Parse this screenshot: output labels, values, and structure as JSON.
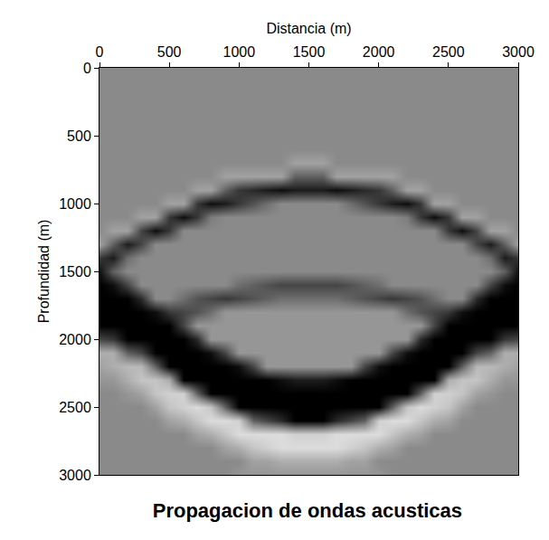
{
  "chart_data": {
    "type": "heatmap",
    "title": "Propagacion de ondas acusticas",
    "x_label": "Distancia (m)",
    "y_label": "Profundidad (m)",
    "x": [
      0,
      100,
      200,
      300,
      400,
      500,
      600,
      700,
      800,
      900,
      1000,
      1100,
      1200,
      1300,
      1400,
      1500,
      1600,
      1700,
      1800,
      1900,
      2000,
      2100,
      2200,
      2300,
      2400,
      2500,
      2600,
      2700,
      2800,
      2900,
      3000
    ],
    "y": [
      0,
      100,
      200,
      300,
      400,
      500,
      600,
      700,
      800,
      900,
      1000,
      1100,
      1200,
      1300,
      1400,
      1500,
      1600,
      1700,
      1800,
      1900,
      2000,
      2100,
      2200,
      2300,
      2400,
      2500,
      2600,
      2700,
      2800,
      2900,
      3000
    ],
    "xlim": [
      0,
      3000
    ],
    "ylim": [
      3000,
      0
    ],
    "xticks": [
      0,
      500,
      1000,
      1500,
      2000,
      2500,
      3000
    ],
    "yticks": [
      0,
      500,
      1000,
      1500,
      2000,
      2500,
      3000
    ],
    "zlim": [
      -10,
      10
    ],
    "grid": false,
    "z": [
      [
        0,
        0,
        0,
        0,
        0,
        0,
        0,
        0,
        0,
        0,
        0,
        0,
        0,
        0,
        0,
        0,
        0,
        0,
        0,
        0,
        0,
        0,
        0,
        0,
        0,
        0,
        0,
        0,
        0,
        0,
        0
      ],
      [
        0,
        0,
        0,
        0,
        0,
        0,
        0,
        0,
        0,
        0,
        0,
        0,
        0,
        0,
        0,
        0,
        0,
        0,
        0,
        0,
        0,
        0,
        0,
        0,
        0,
        0,
        0,
        0,
        0,
        0,
        0
      ],
      [
        0,
        0,
        0,
        0,
        0,
        0,
        0,
        0,
        0,
        0,
        0,
        0,
        0,
        0,
        0,
        0,
        0,
        0,
        0,
        0,
        0,
        0,
        0,
        0,
        0,
        0,
        0,
        0,
        0,
        0,
        0
      ],
      [
        0,
        0,
        0,
        0,
        0,
        0,
        0,
        0,
        0,
        0,
        0,
        0,
        0,
        0,
        0,
        0,
        0,
        0,
        0,
        0,
        0,
        0,
        0,
        0,
        0,
        0,
        0,
        0,
        0,
        0,
        0
      ],
      [
        0,
        0,
        0,
        0,
        0,
        0,
        0,
        0,
        0,
        0,
        0,
        0,
        0,
        0,
        0,
        0,
        0,
        0,
        0,
        0,
        0,
        0,
        0,
        0,
        0,
        0,
        0,
        0,
        0,
        0,
        0
      ],
      [
        0,
        0,
        0,
        0,
        0,
        0,
        0,
        0,
        0,
        0,
        0,
        0,
        0,
        0,
        0,
        0,
        0,
        0,
        0,
        0,
        0,
        0,
        0,
        0,
        0,
        0,
        0,
        0,
        0,
        0,
        0
      ],
      [
        0,
        0,
        0,
        0,
        0,
        0,
        0,
        0,
        0,
        0,
        0,
        0,
        0,
        0,
        0,
        0,
        0,
        0,
        0,
        0,
        0,
        0,
        0,
        0,
        0,
        0,
        0,
        0,
        0,
        0,
        0
      ],
      [
        0,
        0,
        0,
        0,
        0,
        0,
        0,
        0,
        0,
        0,
        0,
        0,
        0,
        0,
        -2,
        -2,
        -2,
        0,
        0,
        0,
        0,
        0,
        0,
        0,
        0,
        0,
        0,
        0,
        0,
        0,
        0
      ],
      [
        0,
        0,
        0,
        0,
        0,
        0,
        0,
        0,
        0,
        -2,
        -2,
        -2,
        -2,
        -2,
        3,
        3,
        3,
        -2,
        -2,
        -2,
        -2,
        -2,
        0,
        0,
        0,
        0,
        0,
        0,
        0,
        0,
        0
      ],
      [
        0,
        0,
        0,
        0,
        0,
        0,
        0,
        -2,
        -2,
        3,
        6,
        7,
        8,
        9,
        8,
        8,
        8,
        9,
        8,
        7,
        6,
        3,
        -2,
        -2,
        0,
        0,
        0,
        0,
        0,
        0,
        0
      ],
      [
        0,
        0,
        0,
        0,
        0,
        -2,
        -2,
        6,
        9,
        8,
        6,
        4,
        2,
        0,
        0,
        0,
        0,
        0,
        2,
        4,
        6,
        8,
        9,
        6,
        -2,
        -2,
        0,
        0,
        0,
        0,
        0
      ],
      [
        0,
        0,
        0,
        -2,
        -2,
        6,
        9,
        6,
        1,
        0,
        0,
        0,
        0,
        0,
        0,
        0,
        0,
        0,
        0,
        0,
        0,
        0,
        1,
        6,
        9,
        6,
        -2,
        -2,
        0,
        0,
        0
      ],
      [
        0,
        -2,
        -2,
        5,
        9,
        6,
        0,
        0,
        0,
        0,
        0,
        0,
        0,
        0,
        0,
        0,
        0,
        0,
        0,
        0,
        0,
        0,
        0,
        0,
        0,
        6,
        9,
        5,
        -2,
        -2,
        0
      ],
      [
        -2,
        3,
        8,
        5,
        0,
        0,
        0,
        0,
        0,
        0,
        0,
        0,
        0,
        0,
        0,
        0,
        0,
        0,
        0,
        0,
        0,
        0,
        0,
        0,
        0,
        0,
        0,
        5,
        8,
        3,
        -2
      ],
      [
        6,
        8,
        2,
        0,
        0,
        0,
        0,
        0,
        0,
        0,
        0,
        0,
        0,
        0,
        0,
        0,
        0,
        0,
        0,
        0,
        0,
        0,
        0,
        0,
        0,
        0,
        0,
        0,
        2,
        8,
        6
      ],
      [
        9,
        3,
        0,
        0,
        0,
        0,
        0,
        0,
        0,
        0,
        0,
        0,
        0,
        0,
        0,
        0,
        0,
        0,
        0,
        0,
        0,
        0,
        0,
        0,
        0,
        0,
        0,
        0,
        0,
        3,
        9
      ],
      [
        10,
        9,
        5,
        0,
        0,
        0,
        0,
        0,
        0,
        0,
        2,
        3,
        4,
        5,
        5,
        5,
        5,
        5,
        4,
        3,
        2,
        0,
        0,
        0,
        0,
        0,
        0,
        0,
        5,
        9,
        10
      ],
      [
        10,
        10,
        10,
        7,
        0,
        0,
        2,
        4,
        5,
        6,
        5,
        4,
        3,
        2,
        2,
        2,
        2,
        2,
        3,
        4,
        5,
        6,
        5,
        4,
        2,
        0,
        0,
        7,
        10,
        10,
        10
      ],
      [
        10,
        10,
        10,
        10,
        9,
        6,
        5,
        4,
        2,
        -1,
        -1,
        -1,
        -1,
        -1,
        -1,
        -1,
        -1,
        -1,
        -1,
        -1,
        -1,
        -1,
        2,
        4,
        5,
        6,
        9,
        10,
        10,
        10,
        10
      ],
      [
        10,
        10,
        10,
        10,
        10,
        10,
        5,
        -1,
        -1,
        -1,
        -1,
        -1,
        -1,
        -1,
        -1,
        -1,
        -1,
        -1,
        -1,
        -1,
        -1,
        -1,
        -1,
        -1,
        5,
        10,
        10,
        10,
        10,
        10,
        10
      ],
      [
        5,
        6,
        10,
        10,
        10,
        10,
        10,
        7,
        -1,
        -1,
        -1,
        -1,
        -1,
        -1,
        -1,
        -1,
        -1,
        -1,
        -1,
        -1,
        -1,
        -1,
        -1,
        7,
        10,
        10,
        10,
        10,
        10,
        6,
        5
      ],
      [
        -3,
        -3,
        3,
        5,
        10,
        10,
        10,
        10,
        9,
        5,
        -1,
        -1,
        -1,
        -1,
        -1,
        -1,
        -1,
        -1,
        -1,
        -1,
        -1,
        5,
        9,
        10,
        10,
        10,
        10,
        5,
        3,
        -3,
        -3
      ],
      [
        -2,
        -3,
        -4,
        -4,
        3,
        10,
        10,
        10,
        10,
        10,
        9,
        5,
        -1,
        -1,
        -1,
        -1,
        -1,
        -1,
        -1,
        5,
        9,
        10,
        10,
        10,
        10,
        10,
        3,
        -4,
        -4,
        -3,
        -2
      ],
      [
        -1,
        -1,
        -3,
        -5,
        -5,
        -3,
        10,
        10,
        10,
        10,
        10,
        10,
        10,
        9,
        8,
        8,
        8,
        9,
        10,
        10,
        10,
        10,
        10,
        10,
        10,
        -3,
        -5,
        -5,
        -3,
        -1,
        -1
      ],
      [
        0,
        0,
        -1,
        -2,
        -5,
        -6,
        -6,
        3,
        10,
        10,
        10,
        10,
        10,
        10,
        10,
        10,
        10,
        10,
        10,
        10,
        10,
        10,
        10,
        3,
        -6,
        -6,
        -5,
        -2,
        -1,
        0,
        0
      ],
      [
        0,
        0,
        0,
        0,
        -2,
        -5,
        -6,
        -7,
        -5,
        3,
        10,
        10,
        10,
        10,
        10,
        10,
        10,
        10,
        10,
        10,
        10,
        3,
        -5,
        -7,
        -6,
        -5,
        -2,
        0,
        0,
        0,
        0
      ],
      [
        0,
        0,
        0,
        0,
        0,
        -2,
        -3,
        -5,
        -7,
        -7,
        -6,
        3,
        5,
        7,
        10,
        10,
        10,
        7,
        5,
        3,
        -6,
        -7,
        -7,
        -5,
        -3,
        -2,
        0,
        0,
        0,
        0,
        0
      ],
      [
        0,
        0,
        0,
        0,
        0,
        0,
        0,
        -2,
        -3,
        -5,
        -7,
        -7,
        -7,
        -7,
        -6,
        -6,
        -6,
        -7,
        -7,
        -7,
        -7,
        -5,
        -3,
        -2,
        0,
        0,
        0,
        0,
        0,
        0,
        0
      ],
      [
        0,
        0,
        0,
        0,
        0,
        0,
        0,
        0,
        0,
        -2,
        -3,
        -5,
        -6,
        -7,
        -7,
        -7,
        -7,
        -7,
        -6,
        -5,
        -3,
        -2,
        0,
        0,
        0,
        0,
        0,
        0,
        0,
        0,
        0
      ],
      [
        0,
        0,
        0,
        0,
        0,
        0,
        0,
        0,
        0,
        0,
        0,
        -2,
        -2,
        -3,
        -3,
        -3,
        -3,
        -3,
        -2,
        -2,
        0,
        0,
        0,
        0,
        0,
        0,
        0,
        0,
        0,
        0,
        0
      ],
      [
        0,
        0,
        0,
        0,
        0,
        0,
        0,
        0,
        0,
        0,
        -1,
        -1,
        -1,
        -1,
        -1,
        -1,
        -1,
        -1,
        -1,
        -1,
        -1,
        0,
        0,
        0,
        0,
        0,
        0,
        0,
        0,
        0,
        0
      ]
    ]
  }
}
